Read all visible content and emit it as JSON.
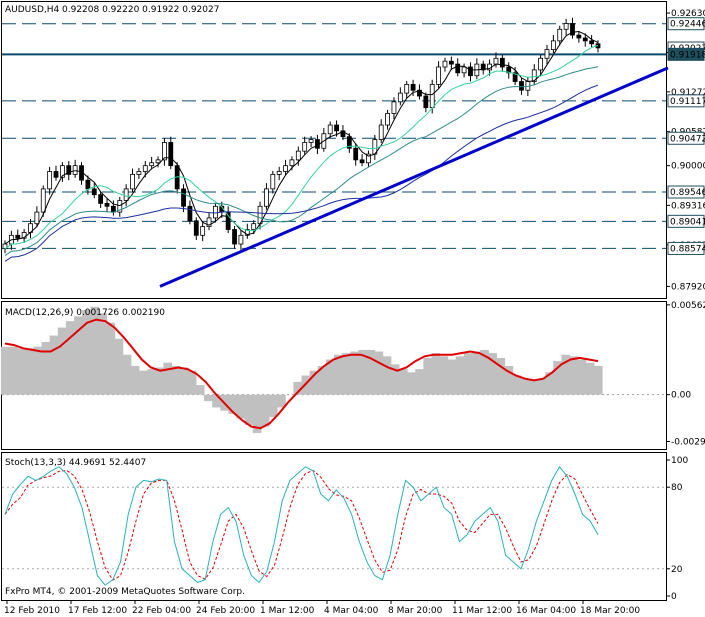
{
  "header": {
    "symbol": "AUDUSD,H4",
    "ohlc": "0.92208 0.92220 0.91922 0.92027"
  },
  "colors": {
    "background": "#ffffff",
    "grid": "#000000",
    "candle": "#000000",
    "trendline": "#0000cc",
    "level_line": "#0a4a6e",
    "ma_fast": "#000000",
    "ma_mid": "#2fd49c",
    "ma_slow": "#2e8b8b",
    "ma_slowest": "#1a2fa0",
    "macd_hist": "#c0c0c0",
    "macd_signal": "#e00000",
    "stoch_main": "#2ab0c0",
    "stoch_signal": "#e00000"
  },
  "price_axis": {
    "min": 0.8772,
    "max": 0.9282,
    "ticks": [
      "0.92630",
      "0.91950",
      "0.91272",
      "0.90587",
      "0.90000",
      "0.89316",
      "0.88637",
      "0.87920"
    ],
    "highlight_labels": [
      "0.92446",
      "0.92027",
      "0.91918",
      "0.91117",
      "0.90472",
      "0.89546",
      "0.89041",
      "0.88574"
    ]
  },
  "levels": [
    {
      "price": 0.92446,
      "style": "dashed"
    },
    {
      "price": 0.91918,
      "style": "solid"
    },
    {
      "price": 0.91117,
      "style": "dashed"
    },
    {
      "price": 0.90472,
      "style": "dashed"
    },
    {
      "price": 0.89546,
      "style": "dashed"
    },
    {
      "price": 0.89041,
      "style": "dashed"
    },
    {
      "price": 0.88574,
      "style": "dashed"
    }
  ],
  "trendline": {
    "x_start": 160,
    "y_start": 0.8792,
    "x_end": 668,
    "y_end": 0.91685
  },
  "x_axis": {
    "labels": [
      "12 Feb 2010",
      "17 Feb 12:00",
      "22 Feb 04:00",
      "24 Feb 20:00",
      "1 Mar 12:00",
      "4 Mar 04:00",
      "8 Mar 20:00",
      "11 Mar 12:00",
      "16 Mar 04:00",
      "18 Mar 20:00"
    ]
  },
  "macd": {
    "title": "MACD(12,26,9) 0.001726 0.002190",
    "min": -0.0034,
    "max": 0.0058,
    "ticks": [
      "0.005621",
      "0.00",
      "-0.002932"
    ]
  },
  "stoch": {
    "title": "Stoch(13,3,3) 44.9691 52.4407",
    "ticks": [
      "100",
      "80",
      "20",
      "0"
    ]
  },
  "footer": {
    "copyright": "FxPro MT4, © 2001-2009 MetaQuotes Software Corp."
  },
  "chart_data": {
    "type": "candlestick",
    "title": "AUDUSD,H4",
    "series": {
      "price_close": [
        0.8865,
        0.888,
        0.8875,
        0.8885,
        0.89,
        0.892,
        0.896,
        0.899,
        0.898,
        0.9,
        0.8985,
        0.9,
        0.8975,
        0.896,
        0.895,
        0.8935,
        0.893,
        0.892,
        0.894,
        0.896,
        0.8985,
        0.899,
        0.9,
        0.9005,
        0.901,
        0.904,
        0.9,
        0.896,
        0.893,
        0.8905,
        0.888,
        0.8895,
        0.891,
        0.893,
        0.892,
        0.889,
        0.8865,
        0.888,
        0.889,
        0.89,
        0.893,
        0.896,
        0.8985,
        0.899,
        0.9,
        0.901,
        0.9025,
        0.904,
        0.9045,
        0.903,
        0.9055,
        0.907,
        0.906,
        0.905,
        0.903,
        0.901,
        0.9005,
        0.902,
        0.9045,
        0.907,
        0.909,
        0.911,
        0.9125,
        0.914,
        0.913,
        0.912,
        0.91,
        0.914,
        0.917,
        0.918,
        0.9175,
        0.916,
        0.917,
        0.9155,
        0.9175,
        0.9165,
        0.9175,
        0.9185,
        0.917,
        0.916,
        0.9145,
        0.913,
        0.9145,
        0.9165,
        0.9185,
        0.92,
        0.9215,
        0.9235,
        0.9245,
        0.9225,
        0.922,
        0.9215,
        0.921,
        0.9203
      ],
      "macd_hist": [
        0.003,
        0.003,
        0.0029,
        0.0029,
        0.003,
        0.0033,
        0.0037,
        0.0042,
        0.0046,
        0.0049,
        0.0053,
        0.0055,
        0.0051,
        0.0045,
        0.0035,
        0.0025,
        0.0018,
        0.0015,
        0.0016,
        0.0017,
        0.002,
        0.0018,
        0.0017,
        0.0015,
        0.0006,
        -0.0004,
        -0.0008,
        -0.001,
        -0.0012,
        -0.0015,
        -0.0019,
        -0.0024,
        -0.002,
        -0.0014,
        -0.0008,
        0.0,
        0.0008,
        0.0012,
        0.0015,
        0.0018,
        0.0022,
        0.0025,
        0.0026,
        0.0027,
        0.0028,
        0.0028,
        0.0027,
        0.0024,
        0.0019,
        0.0016,
        0.0014,
        0.0016,
        0.0023,
        0.0026,
        0.0024,
        0.0022,
        0.0024,
        0.0026,
        0.0027,
        0.0028,
        0.0026,
        0.0023,
        0.0018,
        0.0012,
        0.001,
        0.0009,
        0.001,
        0.0014,
        0.0021,
        0.0025,
        0.0024,
        0.0022,
        0.002,
        0.0018
      ],
      "macd_signal": [
        0.0032,
        0.0031,
        0.0029,
        0.0028,
        0.0027,
        0.0027,
        0.003,
        0.0035,
        0.004,
        0.0045,
        0.0047,
        0.0046,
        0.0042,
        0.0036,
        0.0029,
        0.0022,
        0.0017,
        0.0015,
        0.0016,
        0.0017,
        0.0016,
        0.0013,
        0.0008,
        0.0001,
        -0.0005,
        -0.0011,
        -0.0016,
        -0.002,
        -0.0021,
        -0.0018,
        -0.0012,
        -0.0005,
        0.0001,
        0.0007,
        0.0013,
        0.0018,
        0.0022,
        0.0024,
        0.0025,
        0.0025,
        0.0023,
        0.002,
        0.0017,
        0.0015,
        0.0017,
        0.0021,
        0.0024,
        0.0025,
        0.0025,
        0.0025,
        0.0026,
        0.0027,
        0.0026,
        0.0023,
        0.0019,
        0.0015,
        0.0012,
        0.001,
        0.0009,
        0.001,
        0.0014,
        0.0019,
        0.0022,
        0.0023,
        0.0022,
        0.0021
      ],
      "stoch_main": [
        60,
        75,
        82,
        88,
        85,
        88,
        92,
        95,
        90,
        80,
        65,
        40,
        15,
        8,
        12,
        25,
        60,
        80,
        85,
        84,
        86,
        85,
        40,
        20,
        15,
        10,
        12,
        40,
        60,
        65,
        55,
        30,
        15,
        10,
        18,
        40,
        70,
        85,
        90,
        95,
        92,
        75,
        70,
        78,
        72,
        60,
        40,
        25,
        15,
        12,
        30,
        60,
        85,
        80,
        70,
        75,
        80,
        65,
        60,
        40,
        45,
        55,
        60,
        65,
        55,
        30,
        25,
        20,
        35,
        55,
        70,
        85,
        95,
        88,
        75,
        60,
        55,
        45
      ]
    }
  }
}
